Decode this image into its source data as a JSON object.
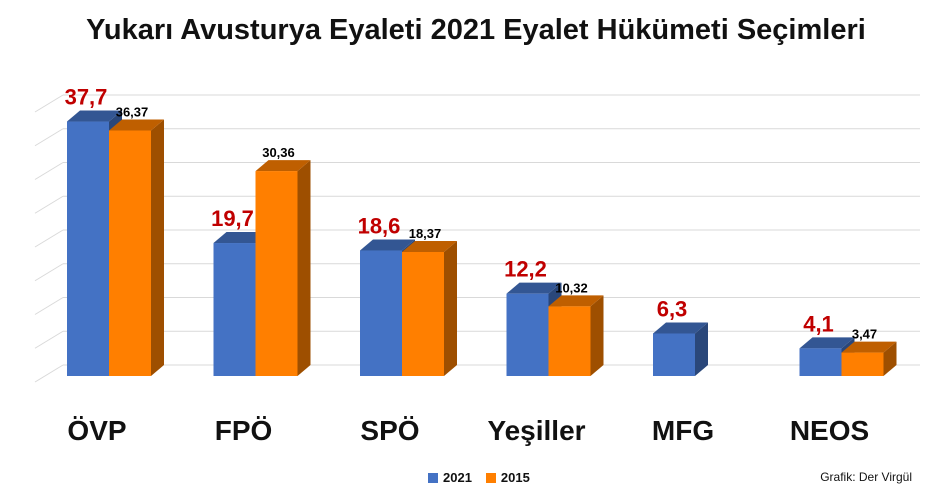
{
  "chart_data": {
    "type": "bar",
    "title": "Yukarı Avusturya Eyaleti 2021 Eyalet Hükümeti Seçimleri",
    "categories": [
      "ÖVP",
      "FPÖ",
      "SPÖ",
      "Yeşiller",
      "MFG",
      "NEOS"
    ],
    "series": [
      {
        "name": "2021",
        "values": [
          37.7,
          19.7,
          18.6,
          12.2,
          6.3,
          4.1
        ],
        "labels": [
          "37,7",
          "19,7",
          "18,6",
          "12,2",
          "6,3",
          "4,1"
        ],
        "color": "#4472C4",
        "label_color": "#C00000"
      },
      {
        "name": "2015",
        "values": [
          36.37,
          30.36,
          18.37,
          10.32,
          null,
          3.47
        ],
        "labels": [
          "36,37",
          "30,36",
          "18,37",
          "10,32",
          "",
          "3,47"
        ],
        "color": "#FF7F00",
        "label_color": "#000000"
      }
    ],
    "ylim": [
      0,
      40
    ],
    "grid": true,
    "legend_position": "bottom"
  },
  "footer": {
    "source": "Grafik: Der Virgül"
  }
}
